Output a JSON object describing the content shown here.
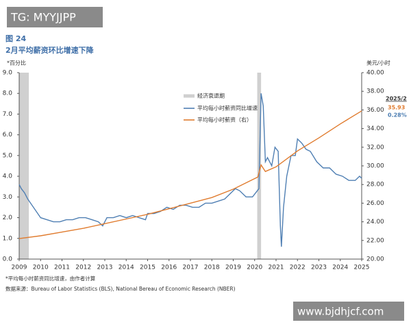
{
  "watermark_top": "TG: MYYJJPP",
  "watermark_bottom": "www.bjdhjcf.com",
  "chart_data": {
    "type": "line",
    "figure_label": "图 24",
    "title": "2月平均薪资环比增速下降",
    "y_label": "*百分比",
    "y2_label": "美元/小时",
    "annotation_date": "2025/2",
    "annotation_wage": "35.93",
    "annotation_growth": "0.28%",
    "footnote": "*平均每小时薪资同比增速，由作者计算",
    "source": "数据来源：Bureau of Labor Statistics (BLS), National Bereau of Economic Research (NBER)",
    "recession_label": "经济衰退期",
    "recession_color": "#d0d0d0",
    "recessions": [
      [
        2009.0,
        2009.45
      ],
      [
        2020.12,
        2020.3
      ]
    ],
    "xlim": [
      2009,
      2025
    ],
    "xticks": [
      2009,
      2010,
      2011,
      2012,
      2013,
      2014,
      2015,
      2016,
      2017,
      2018,
      2019,
      2020,
      2021,
      2022,
      2023,
      2024,
      2025
    ],
    "ylim": [
      0,
      9
    ],
    "yticks": [
      {
        "value": 0,
        "label": "0.0"
      },
      {
        "value": 1,
        "label": "1.0"
      },
      {
        "value": 2,
        "label": "2.0"
      },
      {
        "value": 3,
        "label": "3.0"
      },
      {
        "value": 4,
        "label": "4.0"
      },
      {
        "value": 5,
        "label": "5.0"
      },
      {
        "value": 6,
        "label": "6.0"
      },
      {
        "value": 7,
        "label": "7.0"
      },
      {
        "value": 8,
        "label": "8.0"
      },
      {
        "value": 9,
        "label": "9.0"
      }
    ],
    "y2lim": [
      20,
      40
    ],
    "y2ticks": [
      {
        "value": 20,
        "label": "20.00"
      },
      {
        "value": 22,
        "label": "22.00"
      },
      {
        "value": 24,
        "label": "24.00"
      },
      {
        "value": 26,
        "label": "26.00"
      },
      {
        "value": 28,
        "label": "28.00"
      },
      {
        "value": 30,
        "label": "30.00"
      },
      {
        "value": 32,
        "label": "32.00"
      },
      {
        "value": 34,
        "label": "34.00"
      },
      {
        "value": 36,
        "label": "36.00"
      },
      {
        "value": 38,
        "label": "38.00"
      },
      {
        "value": 40,
        "label": "40.00"
      }
    ],
    "series": [
      {
        "name": "平均每小时薪资同比增速",
        "color": "#4f7fb3",
        "axis": "y",
        "x": [
          2009.0,
          2009.1,
          2009.25,
          2009.4,
          2009.6,
          2009.8,
          2010.0,
          2010.3,
          2010.6,
          2010.9,
          2011.2,
          2011.5,
          2011.8,
          2012.1,
          2012.4,
          2012.7,
          2012.9,
          2013.1,
          2013.4,
          2013.7,
          2014.0,
          2014.3,
          2014.6,
          2014.9,
          2015.0,
          2015.3,
          2015.6,
          2015.9,
          2016.2,
          2016.5,
          2016.8,
          2017.1,
          2017.4,
          2017.7,
          2018.0,
          2018.3,
          2018.6,
          2018.9,
          2019.1,
          2019.3,
          2019.6,
          2019.9,
          2020.2,
          2020.3,
          2020.4,
          2020.5,
          2020.6,
          2020.8,
          2020.95,
          2021.1,
          2021.2,
          2021.25,
          2021.35,
          2021.5,
          2021.7,
          2021.9,
          2022.0,
          2022.2,
          2022.4,
          2022.6,
          2022.9,
          2023.2,
          2023.5,
          2023.8,
          2024.1,
          2024.4,
          2024.7,
          2024.9,
          2025.0
        ],
        "values": [
          3.6,
          3.4,
          3.2,
          2.9,
          2.6,
          2.3,
          2.0,
          1.9,
          1.8,
          1.8,
          1.9,
          1.9,
          2.0,
          2.0,
          1.9,
          1.8,
          1.6,
          2.0,
          2.0,
          2.1,
          2.0,
          2.1,
          2.0,
          1.9,
          2.2,
          2.2,
          2.3,
          2.5,
          2.4,
          2.6,
          2.6,
          2.5,
          2.5,
          2.7,
          2.7,
          2.8,
          2.9,
          3.2,
          3.4,
          3.3,
          3.0,
          3.0,
          3.4,
          8.0,
          7.4,
          4.7,
          4.9,
          4.5,
          5.4,
          5.2,
          1.6,
          0.6,
          2.5,
          4.0,
          5.0,
          5.0,
          5.8,
          5.6,
          5.3,
          5.2,
          4.7,
          4.4,
          4.4,
          4.1,
          4.0,
          3.8,
          3.8,
          4.0,
          3.9
        ]
      },
      {
        "name": "平均每小时薪资（右）",
        "color": "#e07b2e",
        "axis": "y2",
        "x": [
          2009.0,
          2010.0,
          2011.0,
          2012.0,
          2013.0,
          2014.0,
          2015.0,
          2016.0,
          2017.0,
          2018.0,
          2019.0,
          2020.15,
          2020.3,
          2020.5,
          2021.0,
          2022.0,
          2023.0,
          2024.0,
          2025.0
        ],
        "values": [
          22.2,
          22.5,
          22.9,
          23.3,
          23.8,
          24.3,
          24.8,
          25.4,
          26.0,
          26.6,
          27.5,
          28.8,
          30.1,
          29.4,
          29.9,
          31.6,
          33.0,
          34.5,
          35.9
        ]
      }
    ]
  }
}
